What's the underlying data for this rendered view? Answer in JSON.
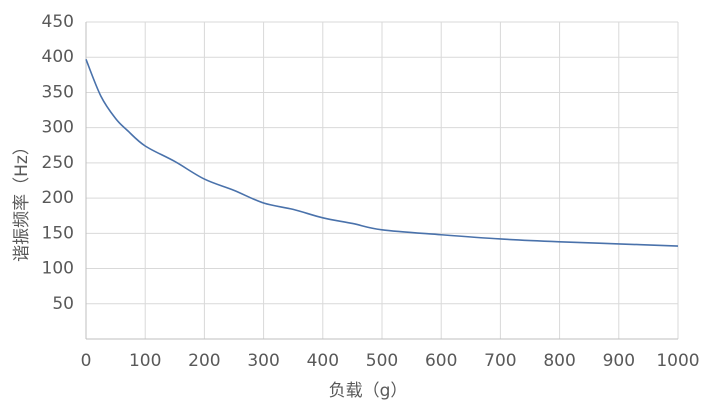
{
  "chart_data": {
    "type": "line",
    "x_label": "负载（g）",
    "y_label": "谐振频率（Hz）",
    "x": [
      0,
      25,
      50,
      70,
      100,
      150,
      200,
      250,
      300,
      350,
      400,
      450,
      500,
      600,
      700,
      800,
      900,
      1000
    ],
    "values": [
      397,
      345,
      313,
      296,
      274,
      252,
      227,
      211,
      193,
      184,
      172,
      164,
      155,
      148,
      142,
      138,
      135,
      132
    ],
    "color": "#4a72ab",
    "xlim": [
      0,
      1000
    ],
    "xticks": [
      0,
      100,
      200,
      300,
      400,
      500,
      600,
      700,
      800,
      900,
      1000
    ],
    "ylim": [
      0,
      450
    ],
    "yticks": [
      50,
      100,
      150,
      200,
      250,
      300,
      350,
      400,
      450
    ],
    "grid": true
  }
}
